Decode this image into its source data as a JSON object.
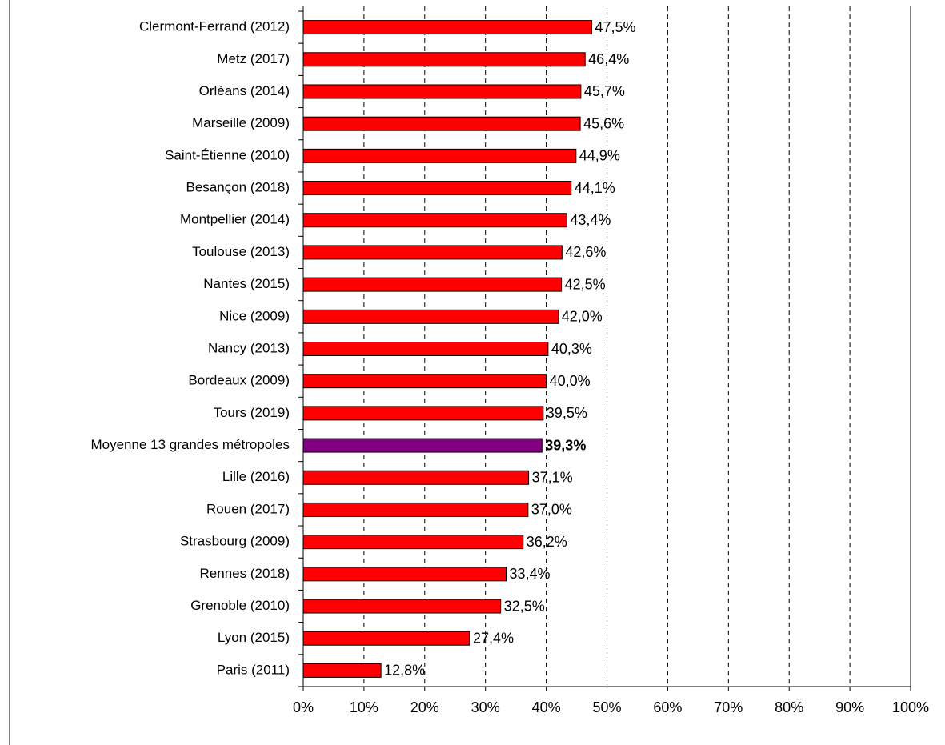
{
  "chart_data": {
    "type": "hbar",
    "categories": [
      "Clermont-Ferrand (2012)",
      "Metz (2017)",
      "Orléans (2014)",
      "Marseille (2009)",
      "Saint-Étienne (2010)",
      "Besançon (2018)",
      "Montpellier (2014)",
      "Toulouse (2013)",
      "Nantes (2015)",
      "Nice (2009)",
      "Nancy (2013)",
      "Bordeaux (2009)",
      "Tours (2019)",
      "Moyenne 13 grandes métropoles",
      "Lille (2016)",
      "Rouen (2017)",
      "Strasbourg (2009)",
      "Rennes (2018)",
      "Grenoble (2010)",
      "Lyon (2015)",
      "Paris (2011)"
    ],
    "values": [
      47.5,
      46.4,
      45.7,
      45.6,
      44.9,
      44.1,
      43.4,
      42.6,
      42.5,
      42.0,
      40.3,
      40.0,
      39.5,
      39.3,
      37.1,
      37.0,
      36.2,
      33.4,
      32.5,
      27.4,
      12.8
    ],
    "value_labels": [
      "47,5%",
      "46,4%",
      "45,7%",
      "45,6%",
      "44,9%",
      "44,1%",
      "43,4%",
      "42,6%",
      "42,5%",
      "42,0%",
      "40,3%",
      "40,0%",
      "39,5%",
      "39,3%",
      "37,1%",
      "37,0%",
      "36,2%",
      "33,4%",
      "32,5%",
      "27,4%",
      "12,8%"
    ],
    "colors": [
      "#ff0000",
      "#ff0000",
      "#ff0000",
      "#ff0000",
      "#ff0000",
      "#ff0000",
      "#ff0000",
      "#ff0000",
      "#ff0000",
      "#ff0000",
      "#ff0000",
      "#ff0000",
      "#ff0000",
      "#800080",
      "#ff0000",
      "#ff0000",
      "#ff0000",
      "#ff0000",
      "#ff0000",
      "#ff0000",
      "#ff0000"
    ],
    "xlim": [
      0,
      100
    ],
    "xticks": [
      {
        "value": 0,
        "label": "0%"
      },
      {
        "value": 10,
        "label": "10%"
      },
      {
        "value": 20,
        "label": "20%"
      },
      {
        "value": 30,
        "label": "30%"
      },
      {
        "value": 40,
        "label": "40%"
      },
      {
        "value": 50,
        "label": "50%"
      },
      {
        "value": 60,
        "label": "60%"
      },
      {
        "value": 70,
        "label": "70%"
      },
      {
        "value": 80,
        "label": "80%"
      },
      {
        "value": 90,
        "label": "90%"
      },
      {
        "value": 100,
        "label": "100%"
      }
    ],
    "grid": true
  }
}
